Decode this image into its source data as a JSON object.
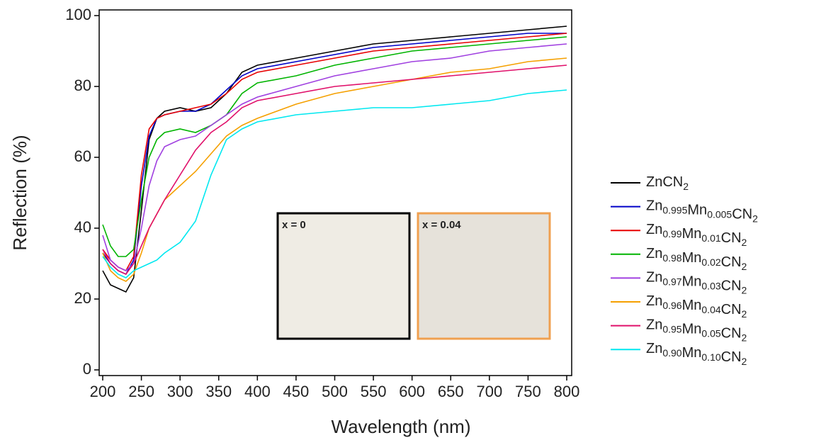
{
  "chart_data": {
    "type": "line",
    "xlabel": "Wavelength (nm)",
    "ylabel": "Reflection (%)",
    "x": [
      200,
      210,
      220,
      230,
      240,
      250,
      260,
      270,
      280,
      300,
      320,
      340,
      360,
      380,
      400,
      450,
      500,
      550,
      600,
      650,
      700,
      750,
      800
    ],
    "series": [
      {
        "name": "ZnCN2",
        "color": "#000000",
        "values": [
          28,
          24,
          23,
          22,
          26,
          45,
          65,
          71,
          73,
          74,
          73,
          74,
          78,
          84,
          86,
          88,
          90,
          92,
          93,
          94,
          95,
          96,
          97
        ]
      },
      {
        "name": "Zn0.995Mn0.005CN2",
        "color": "#0000c8",
        "values": [
          33,
          30,
          28,
          27,
          31,
          52,
          66,
          71,
          72,
          73,
          73,
          75,
          79,
          83,
          85,
          87,
          89,
          91,
          92,
          93,
          94,
          95,
          95
        ]
      },
      {
        "name": "Zn0.99Mn0.01CN2",
        "color": "#e80000",
        "values": [
          34,
          31,
          29,
          28,
          32,
          55,
          68,
          71,
          72,
          73,
          74,
          75,
          78,
          82,
          84,
          86,
          88,
          90,
          91,
          92,
          93,
          94,
          95
        ]
      },
      {
        "name": "Zn0.98Mn0.02CN2",
        "color": "#00b400",
        "values": [
          41,
          35,
          32,
          32,
          34,
          48,
          60,
          65,
          67,
          68,
          67,
          69,
          72,
          78,
          81,
          83,
          86,
          88,
          90,
          91,
          92,
          93,
          94
        ]
      },
      {
        "name": "Zn0.97Mn0.03CN2",
        "color": "#a040e0",
        "values": [
          38,
          31,
          29,
          28,
          30,
          40,
          52,
          59,
          63,
          65,
          66,
          69,
          72,
          75,
          77,
          80,
          83,
          85,
          87,
          88,
          90,
          91,
          92
        ]
      },
      {
        "name": "Zn0.96Mn0.04CN2",
        "color": "#f5a000",
        "values": [
          33,
          28,
          26,
          25,
          27,
          33,
          40,
          44,
          48,
          52,
          56,
          61,
          66,
          69,
          71,
          75,
          78,
          80,
          82,
          84,
          85,
          87,
          88
        ]
      },
      {
        "name": "Zn0.95Mn0.05CN2",
        "color": "#e0106a",
        "values": [
          34,
          30,
          28,
          27,
          30,
          35,
          40,
          44,
          48,
          55,
          62,
          67,
          70,
          74,
          76,
          78,
          80,
          81,
          82,
          83,
          84,
          85,
          86
        ]
      },
      {
        "name": "Zn0.90Mn0.10CN2",
        "color": "#00e8f0",
        "values": [
          32,
          29,
          27,
          26,
          28,
          29,
          30,
          31,
          33,
          36,
          42,
          55,
          65,
          68,
          70,
          72,
          73,
          74,
          74,
          75,
          76,
          78,
          79
        ]
      }
    ],
    "xlim": [
      200,
      800
    ],
    "xticks": [
      200,
      250,
      300,
      350,
      400,
      450,
      500,
      550,
      600,
      650,
      700,
      750,
      800
    ],
    "ylim": [
      0,
      100
    ],
    "yticks": [
      0,
      20,
      40,
      60,
      80,
      100
    ],
    "legend": "right",
    "insets": [
      {
        "label": "x = 0",
        "border": "#000000"
      },
      {
        "label": "x = 0.04",
        "border": "#f0a050"
      }
    ]
  }
}
